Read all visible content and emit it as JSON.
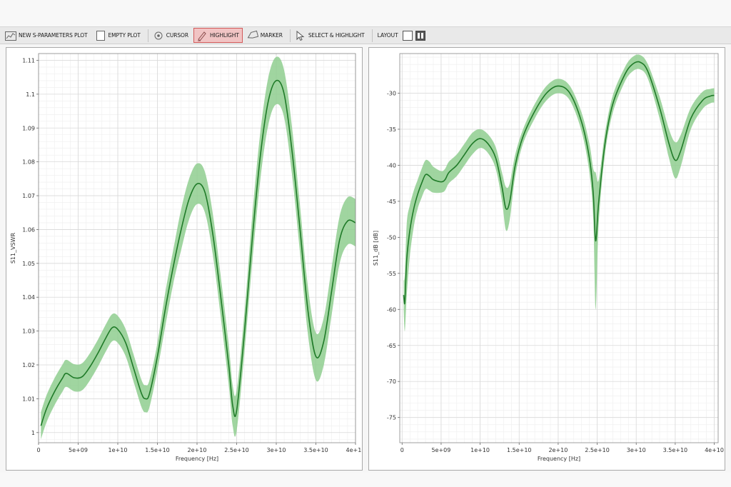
{
  "toolbar": {
    "new_sparam_label": "NEW S-PARAMETERS PLOT",
    "empty_plot_label": "EMPTY PLOT",
    "cursor_label": "CURSOR",
    "highlight_label": "HIGHLIGHT",
    "marker_label": "MARKER",
    "select_highlight_label": "SELECT & HIGHLIGHT",
    "layout_label": "LAYOUT"
  },
  "colors": {
    "line": "#1f7a28",
    "band": "#8fce8f",
    "grid": "#e6e6e6",
    "highlight_active_bg": "#f1c4c4",
    "highlight_active_border": "#d35a5a"
  },
  "chart_data": [
    {
      "type": "line",
      "title": "",
      "xlabel": "Frequency [Hz]",
      "ylabel": "S11_VSWR",
      "xlim": [
        0,
        40000000000
      ],
      "ylim": [
        0.997,
        1.112
      ],
      "xticks": [
        0,
        5000000000,
        10000000000,
        15000000000,
        20000000000,
        25000000000,
        30000000000,
        35000000000,
        40000000000
      ],
      "xtick_labels": [
        "0",
        "5e+09",
        "1e+10",
        "1.5e+10",
        "2e+10",
        "2.5e+10",
        "3e+10",
        "3.5e+10",
        "4e+10"
      ],
      "yticks": [
        1,
        1.01,
        1.02,
        1.03,
        1.04,
        1.05,
        1.06,
        1.07,
        1.08,
        1.09,
        1.1,
        1.11
      ],
      "ytick_labels": [
        "1",
        "1.01",
        "1.02",
        "1.03",
        "1.04",
        "1.05",
        "1.06",
        "1.07",
        "1.08",
        "1.09",
        "1.1",
        "1.11"
      ],
      "grid": true,
      "series": [
        {
          "x": [
            300000000.0,
            1000000000.0,
            2000000000.0,
            3000000000.0,
            3500000000.0,
            4500000000.0,
            5500000000.0,
            6500000000.0,
            7500000000.0,
            8500000000.0,
            9300000000.0,
            10000000000.0,
            11000000000.0,
            12000000000.0,
            13000000000.0,
            13500000000.0,
            14000000000.0,
            15000000000.0,
            16000000000.0,
            17000000000.0,
            18000000000.0,
            19000000000.0,
            20000000000.0,
            21000000000.0,
            22000000000.0,
            23000000000.0,
            24000000000.0,
            24500000000.0,
            25000000000.0,
            26000000000.0,
            27000000000.0,
            28000000000.0,
            29000000000.0,
            30000000000.0,
            31000000000.0,
            32000000000.0,
            33000000000.0,
            34000000000.0,
            35000000000.0,
            36000000000.0,
            37000000000.0,
            38000000000.0,
            39000000000.0,
            40000000000.0
          ],
          "y": [
            1.002,
            1.007,
            1.012,
            1.016,
            1.0175,
            1.0162,
            1.0165,
            1.0195,
            1.0235,
            1.028,
            1.031,
            1.0305,
            1.0265,
            1.019,
            1.0115,
            1.01,
            1.0115,
            1.0225,
            1.0365,
            1.049,
            1.06,
            1.069,
            1.0735,
            1.071,
            1.0585,
            1.04,
            1.02,
            1.008,
            1.0065,
            1.03,
            1.058,
            1.082,
            1.098,
            1.104,
            1.1,
            1.083,
            1.06,
            1.036,
            1.0225,
            1.027,
            1.042,
            1.057,
            1.0625,
            1.062
          ],
          "band": [
            0.004,
            0.004,
            0.004,
            0.004,
            0.004,
            0.004,
            0.004,
            0.004,
            0.004,
            0.004,
            0.004,
            0.004,
            0.004,
            0.004,
            0.004,
            0.004,
            0.004,
            0.004,
            0.005,
            0.005,
            0.006,
            0.006,
            0.006,
            0.006,
            0.006,
            0.006,
            0.006,
            0.006,
            0.006,
            0.006,
            0.007,
            0.007,
            0.007,
            0.007,
            0.007,
            0.007,
            0.007,
            0.007,
            0.007,
            0.007,
            0.007,
            0.007,
            0.007,
            0.007
          ]
        }
      ]
    },
    {
      "type": "line",
      "title": "",
      "xlabel": "Frequency [Hz]",
      "ylabel": "S11_dB [dB]",
      "xlim": [
        -300000000,
        40500000000
      ],
      "ylim": [
        -78.5,
        -24.5
      ],
      "xticks": [
        0,
        5000000000,
        10000000000,
        15000000000,
        20000000000,
        25000000000,
        30000000000,
        35000000000,
        40000000000
      ],
      "xtick_labels": [
        "0",
        "5e+09",
        "1e+10",
        "1.5e+10",
        "2e+10",
        "2.5e+10",
        "3e+10",
        "3.5e+10",
        "4e+10"
      ],
      "yticks": [
        -75,
        -70,
        -65,
        -60,
        -55,
        -50,
        -45,
        -40,
        -35,
        -30
      ],
      "ytick_labels": [
        "-75",
        "-70",
        "-65",
        "-60",
        "-55",
        "-50",
        "-45",
        "-40",
        "-35",
        "-30"
      ],
      "grid": true,
      "series": [
        {
          "x": [
            200000000.0,
            350000000.0,
            600000000.0,
            1000000000.0,
            1500000000.0,
            2000000000.0,
            2500000000.0,
            3000000000.0,
            3500000000.0,
            4000000000.0,
            5000000000.0,
            5500000000.0,
            6000000000.0,
            7000000000.0,
            8000000000.0,
            9000000000.0,
            10000000000.0,
            11000000000.0,
            12000000000.0,
            12800000000.0,
            13300000000.0,
            13800000000.0,
            14500000000.0,
            15500000000.0,
            17000000000.0,
            18500000000.0,
            20000000000.0,
            21500000000.0,
            23000000000.0,
            24000000000.0,
            24500000000.0,
            24800000000.0,
            25200000000.0,
            26000000000.0,
            27000000000.0,
            28500000000.0,
            29500000000.0,
            30500000000.0,
            31500000000.0,
            33000000000.0,
            34200000000.0,
            35000000000.0,
            35700000000.0,
            37000000000.0,
            38500000000.0,
            39500000000.0,
            40000000000.0
          ],
          "y": [
            -58,
            -59,
            -53,
            -49,
            -46,
            -44,
            -42.5,
            -41.3,
            -41.5,
            -42,
            -42.3,
            -42,
            -41,
            -40,
            -38.5,
            -37,
            -36.3,
            -37,
            -39,
            -43,
            -46,
            -45,
            -40,
            -36,
            -32.5,
            -30,
            -29,
            -30,
            -34,
            -39,
            -44,
            -50.5,
            -45,
            -37,
            -31.5,
            -27.5,
            -26,
            -25.7,
            -27,
            -32,
            -37,
            -39.3,
            -38,
            -33.5,
            -31,
            -30.4,
            -30.3
          ],
          "band": [
            2,
            4,
            5,
            3.5,
            2.5,
            2,
            2,
            2,
            2,
            1.8,
            1.5,
            1.5,
            1.5,
            1.5,
            1.5,
            1.5,
            1.3,
            1.3,
            1.5,
            2,
            3,
            2.5,
            1.5,
            1,
            1,
            1,
            1,
            1,
            1.3,
            2,
            3.5,
            9.5,
            3,
            1.5,
            1.2,
            1,
            1,
            1,
            1,
            1.5,
            2,
            2.5,
            2.2,
            1.5,
            1.2,
            1,
            1
          ]
        }
      ]
    }
  ]
}
